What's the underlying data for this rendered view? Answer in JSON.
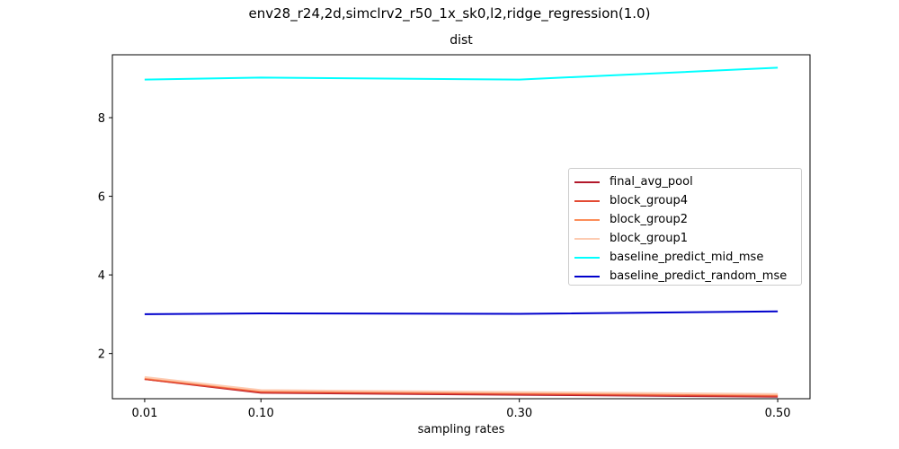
{
  "suptitle": "env28_r24,2d,simclrv2_r50_1x_sk0,l2,ridge_regression(1.0)",
  "chart_data": {
    "type": "line",
    "title": "dist",
    "xlabel": "sampling rates",
    "ylabel": "",
    "x": [
      0.01,
      0.1,
      0.3,
      0.5
    ],
    "xtick_labels": [
      "0.01",
      "0.10",
      "0.30",
      "0.50"
    ],
    "xlim": [
      -0.015,
      0.525
    ],
    "ylim": [
      0.85,
      9.6
    ],
    "yticks": [
      2,
      4,
      6,
      8
    ],
    "grid": false,
    "legend_location": "center-right",
    "series": [
      {
        "name": "final_avg_pool",
        "color": "#b2182b",
        "values": [
          1.35,
          1.0,
          0.95,
          0.9
        ]
      },
      {
        "name": "block_group4",
        "color": "#e34a33",
        "values": [
          1.35,
          1.02,
          0.97,
          0.92
        ]
      },
      {
        "name": "block_group2",
        "color": "#fc8d59",
        "values": [
          1.38,
          1.05,
          1.0,
          0.95
        ]
      },
      {
        "name": "block_group1",
        "color": "#fdcbb1",
        "values": [
          1.4,
          1.07,
          1.02,
          0.97
        ]
      },
      {
        "name": "baseline_predict_mid_mse",
        "color": "#00ffff",
        "values": [
          8.97,
          9.02,
          8.97,
          9.27
        ]
      },
      {
        "name": "baseline_predict_random_mse",
        "color": "#0000cc",
        "values": [
          3.0,
          3.02,
          3.01,
          3.07
        ]
      }
    ]
  }
}
